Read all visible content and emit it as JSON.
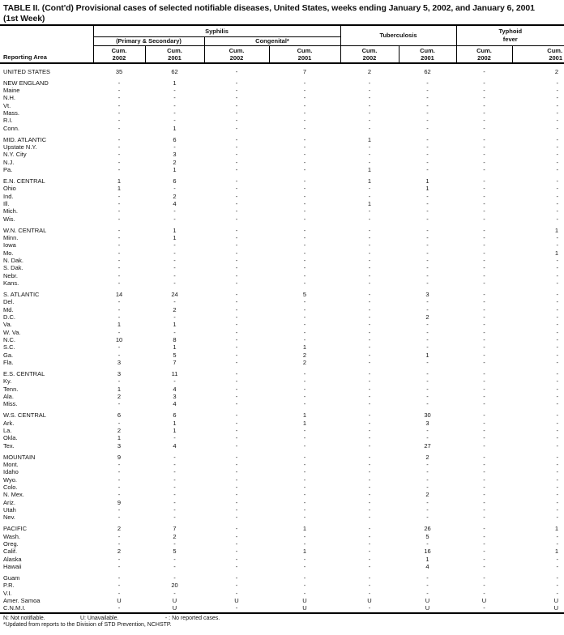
{
  "title": {
    "line1": "TABLE II. (Cont'd) Provisional cases of selected notifiable diseases, United States, weeks ending January 5, 2002, and January 6, 2001",
    "line2": "(1st Week)"
  },
  "table": {
    "reporting_area_label": "Reporting Area",
    "groups": {
      "syphilis": "Syphilis",
      "primary_secondary": "(Primary & Secondary)",
      "congenital": "Congenital*",
      "tuberculosis": "Tuberculosis",
      "typhoid_line1": "Typhoid",
      "typhoid_line2": "fever"
    },
    "cum_label": "Cum.",
    "year_columns": [
      "2002",
      "2001",
      "2002",
      "2001",
      "2002",
      "2001",
      "2002",
      "2001"
    ],
    "sections": [
      {
        "rows": [
          {
            "area": "UNITED STATES",
            "values": [
              "35",
              "62",
              "-",
              "7",
              "2",
              "62",
              "-",
              "2"
            ]
          }
        ]
      },
      {
        "rows": [
          {
            "area": "NEW ENGLAND",
            "values": [
              "-",
              "1",
              "-",
              "-",
              "-",
              "-",
              "-",
              "-"
            ]
          },
          {
            "area": "Maine",
            "values": [
              "-",
              "-",
              "-",
              "-",
              "-",
              "-",
              "-",
              "-"
            ]
          },
          {
            "area": "N.H.",
            "values": [
              "-",
              "-",
              "-",
              "-",
              "-",
              "-",
              "-",
              "-"
            ]
          },
          {
            "area": "Vt.",
            "values": [
              "-",
              "-",
              "-",
              "-",
              "-",
              "-",
              "-",
              "-"
            ]
          },
          {
            "area": "Mass.",
            "values": [
              "-",
              "-",
              "-",
              "-",
              "-",
              "-",
              "-",
              "-"
            ]
          },
          {
            "area": "R.I.",
            "values": [
              "-",
              "-",
              "-",
              "-",
              "-",
              "-",
              "-",
              "-"
            ]
          },
          {
            "area": "Conn.",
            "values": [
              "-",
              "1",
              "-",
              "-",
              "-",
              "-",
              "-",
              "-"
            ]
          }
        ]
      },
      {
        "rows": [
          {
            "area": "MID. ATLANTIC",
            "values": [
              "-",
              "6",
              "-",
              "-",
              "1",
              "-",
              "-",
              "-"
            ]
          },
          {
            "area": "Upstate N.Y.",
            "values": [
              "-",
              "-",
              "-",
              "-",
              "-",
              "-",
              "-",
              "-"
            ]
          },
          {
            "area": "N.Y. City",
            "values": [
              "-",
              "3",
              "-",
              "-",
              "-",
              "-",
              "-",
              "-"
            ]
          },
          {
            "area": "N.J.",
            "values": [
              "-",
              "2",
              "-",
              "-",
              "-",
              "-",
              "-",
              "-"
            ]
          },
          {
            "area": "Pa.",
            "values": [
              "-",
              "1",
              "-",
              "-",
              "1",
              "-",
              "-",
              "-"
            ]
          }
        ]
      },
      {
        "rows": [
          {
            "area": "E.N. CENTRAL",
            "values": [
              "1",
              "6",
              "-",
              "-",
              "1",
              "1",
              "-",
              "-"
            ]
          },
          {
            "area": "Ohio",
            "values": [
              "1",
              "-",
              "-",
              "-",
              "-",
              "1",
              "-",
              "-"
            ]
          },
          {
            "area": "Ind.",
            "values": [
              "-",
              "2",
              "-",
              "-",
              "-",
              "-",
              "-",
              "-"
            ]
          },
          {
            "area": "Ill.",
            "values": [
              "-",
              "4",
              "-",
              "-",
              "1",
              "-",
              "-",
              "-"
            ]
          },
          {
            "area": "Mich.",
            "values": [
              "-",
              "-",
              "-",
              "-",
              "-",
              "-",
              "-",
              "-"
            ]
          },
          {
            "area": "Wis.",
            "values": [
              "-",
              "-",
              "-",
              "-",
              "-",
              "-",
              "-",
              "-"
            ]
          }
        ]
      },
      {
        "rows": [
          {
            "area": "W.N. CENTRAL",
            "values": [
              "-",
              "1",
              "-",
              "-",
              "-",
              "-",
              "-",
              "1"
            ]
          },
          {
            "area": "Minn.",
            "values": [
              "-",
              "1",
              "-",
              "-",
              "-",
              "-",
              "-",
              "-"
            ]
          },
          {
            "area": "Iowa",
            "values": [
              "-",
              "-",
              "-",
              "-",
              "-",
              "-",
              "-",
              "-"
            ]
          },
          {
            "area": "Mo.",
            "values": [
              "-",
              "-",
              "-",
              "-",
              "-",
              "-",
              "-",
              "1"
            ]
          },
          {
            "area": "N. Dak.",
            "values": [
              "-",
              "-",
              "-",
              "-",
              "-",
              "-",
              "-",
              "-"
            ]
          },
          {
            "area": "S. Dak.",
            "values": [
              "-",
              "-",
              "-",
              "-",
              "-",
              "-",
              "-",
              "-"
            ]
          },
          {
            "area": "Nebr.",
            "values": [
              "-",
              "-",
              "-",
              "-",
              "-",
              "-",
              "-",
              "-"
            ]
          },
          {
            "area": "Kans.",
            "values": [
              "-",
              "-",
              "-",
              "-",
              "-",
              "-",
              "-",
              "-"
            ]
          }
        ]
      },
      {
        "rows": [
          {
            "area": "S. ATLANTIC",
            "values": [
              "14",
              "24",
              "-",
              "5",
              "-",
              "3",
              "-",
              "-"
            ]
          },
          {
            "area": "Del.",
            "values": [
              "-",
              "-",
              "-",
              "-",
              "-",
              "-",
              "-",
              "-"
            ]
          },
          {
            "area": "Md.",
            "values": [
              "-",
              "2",
              "-",
              "-",
              "-",
              "-",
              "-",
              "-"
            ]
          },
          {
            "area": "D.C.",
            "values": [
              "-",
              "-",
              "-",
              "-",
              "-",
              "2",
              "-",
              "-"
            ]
          },
          {
            "area": "Va.",
            "values": [
              "1",
              "1",
              "-",
              "-",
              "-",
              "-",
              "-",
              "-"
            ]
          },
          {
            "area": "W. Va.",
            "values": [
              "-",
              "-",
              "-",
              "-",
              "-",
              "-",
              "-",
              "-"
            ]
          },
          {
            "area": "N.C.",
            "values": [
              "10",
              "8",
              "-",
              "-",
              "-",
              "-",
              "-",
              "-"
            ]
          },
          {
            "area": "S.C.",
            "values": [
              "-",
              "1",
              "-",
              "1",
              "-",
              "-",
              "-",
              "-"
            ]
          },
          {
            "area": "Ga.",
            "values": [
              "-",
              "5",
              "-",
              "2",
              "-",
              "1",
              "-",
              "-"
            ]
          },
          {
            "area": "Fla.",
            "values": [
              "3",
              "7",
              "-",
              "2",
              "-",
              "-",
              "-",
              "-"
            ]
          }
        ]
      },
      {
        "rows": [
          {
            "area": "E.S. CENTRAL",
            "values": [
              "3",
              "11",
              "-",
              "-",
              "-",
              "-",
              "-",
              "-"
            ]
          },
          {
            "area": "Ky.",
            "values": [
              "-",
              "-",
              "-",
              "-",
              "-",
              "-",
              "-",
              "-"
            ]
          },
          {
            "area": "Tenn.",
            "values": [
              "1",
              "4",
              "-",
              "-",
              "-",
              "-",
              "-",
              "-"
            ]
          },
          {
            "area": "Ala.",
            "values": [
              "2",
              "3",
              "-",
              "-",
              "-",
              "-",
              "-",
              "-"
            ]
          },
          {
            "area": "Miss.",
            "values": [
              "-",
              "4",
              "-",
              "-",
              "-",
              "-",
              "-",
              "-"
            ]
          }
        ]
      },
      {
        "rows": [
          {
            "area": "W.S. CENTRAL",
            "values": [
              "6",
              "6",
              "-",
              "1",
              "-",
              "30",
              "-",
              "-"
            ]
          },
          {
            "area": "Ark.",
            "values": [
              "-",
              "1",
              "-",
              "1",
              "-",
              "3",
              "-",
              "-"
            ]
          },
          {
            "area": "La.",
            "values": [
              "2",
              "1",
              "-",
              "-",
              "-",
              "-",
              "-",
              "-"
            ]
          },
          {
            "area": "Okla.",
            "values": [
              "1",
              "-",
              "-",
              "-",
              "-",
              "-",
              "-",
              "-"
            ]
          },
          {
            "area": "Tex.",
            "values": [
              "3",
              "4",
              "-",
              "-",
              "-",
              "27",
              "-",
              "-"
            ]
          }
        ]
      },
      {
        "rows": [
          {
            "area": "MOUNTAIN",
            "values": [
              "9",
              "-",
              "-",
              "-",
              "-",
              "2",
              "-",
              "-"
            ]
          },
          {
            "area": "Mont.",
            "values": [
              "-",
              "-",
              "-",
              "-",
              "-",
              "-",
              "-",
              "-"
            ]
          },
          {
            "area": "Idaho",
            "values": [
              "-",
              "-",
              "-",
              "-",
              "-",
              "-",
              "-",
              "-"
            ]
          },
          {
            "area": "Wyo.",
            "values": [
              "-",
              "-",
              "-",
              "-",
              "-",
              "-",
              "-",
              "-"
            ]
          },
          {
            "area": "Colo.",
            "values": [
              "-",
              "-",
              "-",
              "-",
              "-",
              "-",
              "-",
              "-"
            ]
          },
          {
            "area": "N. Mex.",
            "values": [
              "-",
              "-",
              "-",
              "-",
              "-",
              "2",
              "-",
              "-"
            ]
          },
          {
            "area": "Ariz.",
            "values": [
              "9",
              "-",
              "-",
              "-",
              "-",
              "-",
              "-",
              "-"
            ]
          },
          {
            "area": "Utah",
            "values": [
              "-",
              "-",
              "-",
              "-",
              "-",
              "-",
              "-",
              "-"
            ]
          },
          {
            "area": "Nev.",
            "values": [
              "-",
              "-",
              "-",
              "-",
              "-",
              "-",
              "-",
              "-"
            ]
          }
        ]
      },
      {
        "rows": [
          {
            "area": "PACIFIC",
            "values": [
              "2",
              "7",
              "-",
              "1",
              "-",
              "26",
              "-",
              "1"
            ]
          },
          {
            "area": "Wash.",
            "values": [
              "-",
              "2",
              "-",
              "-",
              "-",
              "5",
              "-",
              "-"
            ]
          },
          {
            "area": "Oreg.",
            "values": [
              "-",
              "-",
              "-",
              "-",
              "-",
              "-",
              "-",
              "-"
            ]
          },
          {
            "area": "Calif.",
            "values": [
              "2",
              "5",
              "-",
              "1",
              "-",
              "16",
              "-",
              "1"
            ]
          },
          {
            "area": "Alaska",
            "values": [
              "-",
              "-",
              "-",
              "-",
              "-",
              "1",
              "-",
              "-"
            ]
          },
          {
            "area": "Hawaii",
            "values": [
              "-",
              "-",
              "-",
              "-",
              "-",
              "4",
              "-",
              "-"
            ]
          }
        ]
      },
      {
        "rows": [
          {
            "area": "Guam",
            "values": [
              "-",
              "-",
              "-",
              "-",
              "-",
              "-",
              "-",
              "-"
            ]
          },
          {
            "area": "P.R.",
            "values": [
              "-",
              "20",
              "-",
              "-",
              "-",
              "-",
              "-",
              "-"
            ]
          },
          {
            "area": "V.I.",
            "values": [
              "-",
              "-",
              "-",
              "-",
              "-",
              "-",
              "-",
              "-"
            ]
          },
          {
            "area": "Amer. Samoa",
            "values": [
              "U",
              "U",
              "U",
              "U",
              "U",
              "U",
              "U",
              "U"
            ]
          },
          {
            "area": "C.N.M.I.",
            "values": [
              "-",
              "U",
              "-",
              "U",
              "-",
              "U",
              "-",
              "U"
            ]
          }
        ]
      }
    ]
  },
  "footnotes": {
    "seg1": "N: Not notifiable.",
    "seg2": "U: Unavailable.",
    "seg3": "- : No reported cases.",
    "line2": "*Updated from reports to the Division of STD Prevention, NCHSTP."
  }
}
